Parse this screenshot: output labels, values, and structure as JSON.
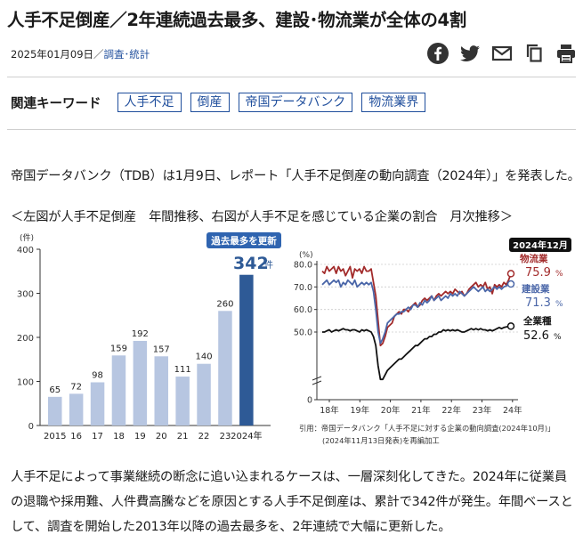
{
  "article": {
    "title": "人手不足倒産／2年連続過去最多、建設･物流業が全体の4割",
    "date": "2025年01月09日",
    "separator": "／",
    "category": "調査･統計"
  },
  "share_icons": [
    "facebook-icon",
    "twitter-icon",
    "mail-icon",
    "copy-icon",
    "print-icon"
  ],
  "keywords": {
    "label": "関連キーワード",
    "tags": [
      "人手不足",
      "倒産",
      "帝国データバンク",
      "物流業界"
    ]
  },
  "paragraph1": "帝国データバンク（TDB）は1月9日、レポート「人手不足倒産の動向調査（2024年）」を発表した。",
  "figure_caption": "＜左図が人手不足倒産　年間推移、右図が人手不足を感じている企業の割合　月次推移＞",
  "body_text": "人手不足によって事業継続の断念に追い込まれるケースは、一層深刻化してきた。2024年に従業員の退職や採用難、人件費高騰などを原因とする人手不足倒産は、累計で342件が発生。年間ベースとして、調査を開始した2013年以降の過去最多を、2年連続で大幅に更新した。",
  "colors": {
    "accent": "#1f4e9c",
    "bar_light": "#b7c6e1",
    "bar_dark": "#2e5a96",
    "badge_blue": "#2f64b0",
    "badge_black": "#111111",
    "line_logistics": "#a22b2b",
    "line_construction": "#4a66a8",
    "line_all": "#111111"
  },
  "chart_data": [
    {
      "type": "bar",
      "unit_label": "(件)",
      "categories": [
        "2015",
        "16",
        "17",
        "18",
        "19",
        "20",
        "21",
        "22",
        "23",
        "2024年"
      ],
      "values": [
        65,
        72,
        98,
        159,
        192,
        157,
        111,
        140,
        260,
        342
      ],
      "highlight_index": 9,
      "badge": "過去最多を更新",
      "highlight_value_label": "342",
      "highlight_unit": "件",
      "y_ticks": [
        "0",
        "100",
        "200",
        "300",
        "400"
      ],
      "ylim": [
        0,
        400
      ],
      "grid": false
    },
    {
      "type": "line",
      "unit_label": "(%)",
      "badge": "2024年12月",
      "x_ticks": [
        "18年",
        "19年",
        "20年",
        "21年",
        "22年",
        "23年",
        "24年"
      ],
      "y_ticks": [
        "0",
        "50.0",
        "60.0",
        "70.0",
        "80.0"
      ],
      "ylim": [
        40,
        80
      ],
      "axis_break": true,
      "grid": true,
      "series": [
        {
          "name": "物流業",
          "end_value_label": "75.9",
          "unit": "%",
          "values": [
            77,
            76,
            79,
            77,
            78,
            79,
            76,
            79,
            77,
            78,
            75,
            77,
            79,
            74,
            78,
            77,
            78,
            76,
            79,
            77,
            77,
            78,
            72,
            66,
            55,
            44,
            45,
            48,
            52,
            53,
            54,
            57,
            58,
            59,
            58,
            60,
            60,
            59,
            61,
            62,
            63,
            61,
            62,
            64,
            65,
            64,
            65,
            66,
            64,
            66,
            67,
            66,
            67,
            68,
            67,
            68,
            67,
            69,
            68,
            67,
            68,
            66,
            67,
            69,
            70,
            71,
            72,
            70,
            71,
            70,
            72,
            69,
            70,
            67,
            71,
            70,
            71,
            70,
            72,
            71,
            73,
            75.9
          ]
        },
        {
          "name": "建設業",
          "end_value_label": "71.3",
          "unit": "%",
          "values": [
            71,
            72,
            73,
            71,
            72,
            73,
            72,
            73,
            70,
            72,
            71,
            73,
            72,
            71,
            73,
            70,
            71,
            72,
            71,
            72,
            71,
            72,
            68,
            60,
            50,
            45,
            47,
            50,
            54,
            55,
            56,
            57,
            58,
            58,
            59,
            59,
            60,
            61,
            60,
            62,
            62,
            61,
            63,
            62,
            64,
            63,
            64,
            66,
            64,
            65,
            66,
            64,
            65,
            66,
            65,
            67,
            66,
            67,
            66,
            68,
            67,
            66,
            67,
            68,
            69,
            70,
            69,
            68,
            69,
            70,
            68,
            69,
            68,
            69,
            70,
            69,
            70,
            69,
            70,
            70.5,
            71,
            71.3
          ]
        },
        {
          "name": "全業種",
          "end_value_label": "52.6",
          "unit": "%",
          "values": [
            50,
            50,
            50.5,
            51,
            50,
            50.5,
            51,
            50.5,
            51,
            51.5,
            51,
            51,
            50.5,
            51,
            51,
            50.5,
            50,
            51,
            50.5,
            51,
            50.5,
            50,
            48,
            44,
            35,
            29,
            29,
            31,
            33,
            34,
            35,
            36,
            37,
            38,
            38,
            39,
            40,
            41,
            42,
            43,
            44,
            44,
            45,
            46,
            47,
            47,
            48,
            48,
            49,
            49,
            50,
            50,
            51,
            50.5,
            51,
            50.5,
            51,
            50.5,
            51,
            50.5,
            50,
            50,
            50.5,
            51,
            51.5,
            51,
            51.5,
            51,
            51.5,
            51,
            51,
            50.5,
            51,
            50.5,
            51,
            51.5,
            52,
            51.5,
            52,
            52.3,
            52.5,
            52.6
          ]
        }
      ],
      "source_line1": "引用：帝国データバンク「人手不足に対する企業の動向調査(2024年10月)」",
      "source_line2": "(2024年11月13日発表)を再編加工"
    }
  ]
}
